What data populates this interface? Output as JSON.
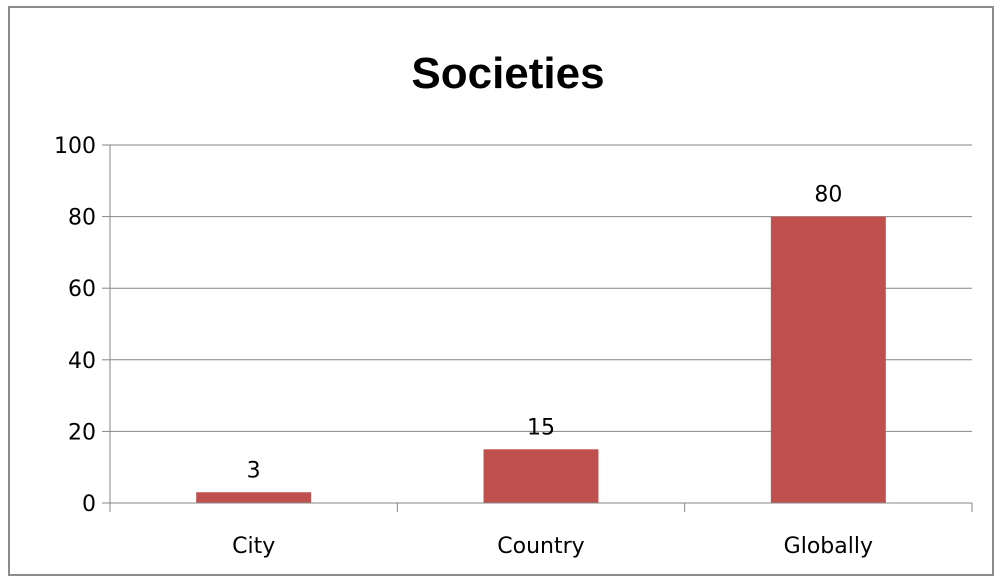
{
  "chart_data": {
    "type": "bar",
    "title": "Societies",
    "categories": [
      "City",
      "Country",
      "Globally"
    ],
    "series": [
      {
        "values": [
          3,
          15,
          80
        ],
        "color": "#c0504d"
      }
    ],
    "data_labels": [
      "3",
      "15",
      "80"
    ],
    "y_ticks": [
      0,
      20,
      40,
      60,
      80,
      100
    ],
    "ylim": [
      0,
      100
    ],
    "xlabel": "",
    "ylabel": "",
    "grid": true,
    "legend": "none"
  },
  "colors": {
    "bar": "#c0504d",
    "grid": "#868686",
    "frame": "#8c8c8c"
  }
}
